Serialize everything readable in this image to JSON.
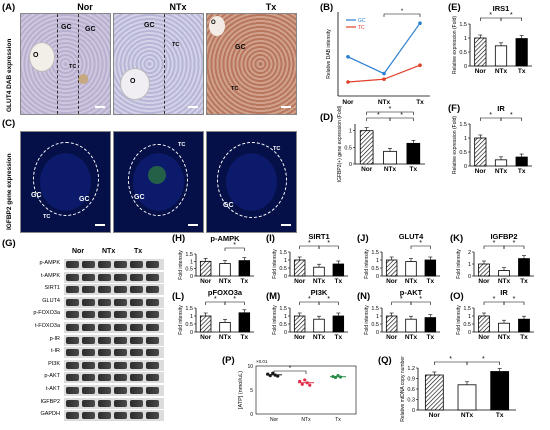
{
  "panels": {
    "A": "(A)",
    "B": "(B)",
    "C": "(C)",
    "D": "(D)",
    "E": "(E)",
    "F": "(F)",
    "G": "(G)",
    "H": "(H)",
    "I": "(I)",
    "J": "(J)",
    "K": "(K)",
    "L": "(L)",
    "M": "(M)",
    "N": "(N)",
    "O": "(O)",
    "P": "(P)",
    "Q": "(Q)"
  },
  "micro": {
    "titles": [
      "Nor",
      "NTx",
      "Tx"
    ],
    "row_a_label": "GLUT4 DAB expression",
    "row_c_label": "IGFBP2 gene expression",
    "gc": "GC",
    "tc": "TC",
    "o": "O"
  },
  "groups": [
    "Nor",
    "NTx",
    "Tx"
  ],
  "chart_data": [
    {
      "panel": "B",
      "type": "line",
      "ylabel": "Relative DAB intensity",
      "categories": [
        "Nor",
        "NTx",
        "Tx"
      ],
      "series": [
        {
          "name": "GC",
          "values": [
            14,
            8,
            26
          ],
          "color": "#2a7fd0"
        },
        {
          "name": "TC",
          "values": [
            5,
            6,
            11
          ],
          "color": "#e0402a"
        }
      ],
      "ylim": [
        0,
        30
      ],
      "significance": [
        "*"
      ]
    },
    {
      "panel": "D",
      "type": "bar",
      "ylabel": "IGFBP2(+) gene expression (Fold)",
      "categories": [
        "Nor",
        "NTx",
        "Tx"
      ],
      "values": [
        1.0,
        0.38,
        0.62
      ],
      "ylim": [
        0,
        1.2
      ],
      "yticks": [
        "0",
        "0.5",
        "1"
      ],
      "significance": [
        "*",
        "*",
        "*"
      ]
    },
    {
      "panel": "E",
      "type": "bar",
      "title": "IRS1",
      "ylabel": "Relative expression (Fold)",
      "categories": [
        "Nor",
        "NTx",
        "Tx"
      ],
      "values": [
        1.0,
        0.72,
        0.98
      ],
      "ylim": [
        0,
        1.5
      ],
      "yticks": [
        "0",
        "0.5",
        "1",
        "1.5"
      ],
      "significance": [
        "*",
        "*"
      ]
    },
    {
      "panel": "F",
      "type": "bar",
      "title": "IR",
      "ylabel": "Relative expression (Fold)",
      "categories": [
        "Nor",
        "NTx",
        "Tx"
      ],
      "values": [
        1.0,
        0.22,
        0.32
      ],
      "ylim": [
        0,
        1.5
      ],
      "yticks": [
        "0",
        "0.5",
        "1",
        "1.5"
      ],
      "significance": [
        "*",
        "*"
      ]
    },
    {
      "panel": "H",
      "type": "bar",
      "title": "p-AMPK",
      "ylabel": "Fold intensity",
      "categories": [
        "Nor",
        "NTx",
        "Tx"
      ],
      "values": [
        1.0,
        0.85,
        1.05
      ],
      "ylim": [
        0,
        1.5
      ],
      "yticks": [
        "0",
        "0.5",
        "1",
        "1.5"
      ],
      "significance": [
        "*"
      ]
    },
    {
      "panel": "I",
      "type": "bar",
      "title": "SIRT1",
      "ylabel": "Fold intensity",
      "categories": [
        "Nor",
        "NTx",
        "Tx"
      ],
      "values": [
        1.0,
        0.55,
        0.75
      ],
      "ylim": [
        0,
        1.5
      ],
      "yticks": [
        "0",
        "0.5",
        "1",
        "1.5"
      ],
      "significance": [
        "*",
        "*"
      ]
    },
    {
      "panel": "J",
      "type": "bar",
      "title": "GLUT4",
      "ylabel": "Fold intensity",
      "categories": [
        "Nor",
        "NTx",
        "Tx"
      ],
      "values": [
        1.0,
        0.9,
        1.0
      ],
      "ylim": [
        0,
        1.5
      ],
      "yticks": [
        "0",
        "0.5",
        "1",
        "1.5"
      ],
      "significance": [
        "*"
      ]
    },
    {
      "panel": "K",
      "type": "bar",
      "title": "IGFBP2",
      "ylabel": "Fold intensity",
      "categories": [
        "Nor",
        "NTx",
        "Tx"
      ],
      "values": [
        1.0,
        0.45,
        1.45
      ],
      "ylim": [
        0,
        2
      ],
      "yticks": [
        "0",
        "1",
        "2"
      ],
      "significance": [
        "*",
        "*"
      ]
    },
    {
      "panel": "L",
      "type": "bar",
      "title": "pFOXO3a",
      "ylabel": "Fold intensity",
      "categories": [
        "Nor",
        "NTx",
        "Tx"
      ],
      "values": [
        1.0,
        0.6,
        1.2
      ],
      "ylim": [
        0,
        1.5
      ],
      "yticks": [
        "0",
        "0.5",
        "1",
        "1.5"
      ],
      "significance": [
        "*",
        "*"
      ]
    },
    {
      "panel": "M",
      "type": "bar",
      "title": "PI3K",
      "ylabel": "Fold intensity",
      "categories": [
        "Nor",
        "NTx",
        "Tx"
      ],
      "values": [
        1.0,
        0.8,
        1.0
      ],
      "ylim": [
        0,
        1.5
      ],
      "yticks": [
        "0",
        "0.5",
        "1",
        "1.5"
      ],
      "significance": [
        "*",
        "*"
      ]
    },
    {
      "panel": "N",
      "type": "bar",
      "title": "p-AKT",
      "ylabel": "Fold intensity",
      "categories": [
        "Nor",
        "NTx",
        "Tx"
      ],
      "values": [
        1.0,
        0.8,
        0.9
      ],
      "ylim": [
        0,
        1.5
      ],
      "yticks": [
        "0",
        "0.5",
        "1",
        "1.5"
      ],
      "significance": [
        "*",
        "*"
      ]
    },
    {
      "panel": "O",
      "type": "bar",
      "title": "IR",
      "ylabel": "Fold intensity",
      "categories": [
        "Nor",
        "NTx",
        "Tx"
      ],
      "values": [
        1.0,
        0.55,
        0.8
      ],
      "ylim": [
        0,
        1.5
      ],
      "yticks": [
        "0",
        "0.5",
        "1",
        "1.5"
      ],
      "significance": [
        "*",
        "*"
      ]
    },
    {
      "panel": "P",
      "type": "scatter",
      "ylabel": "[ATP] (nmol/uL)",
      "yunit": "×0.01",
      "categories": [
        "Nor",
        "NTx",
        "Tx"
      ],
      "values": [
        [
          8.3,
          8.0,
          8.5,
          8.1,
          7.9
        ],
        [
          6.8,
          6.2,
          7.1,
          6.5,
          6.0
        ],
        [
          7.8,
          7.6,
          8.0,
          7.7
        ]
      ],
      "ylim": [
        0,
        10
      ],
      "yticks": [
        "0",
        "5",
        "10"
      ],
      "significance": [
        "*"
      ]
    },
    {
      "panel": "Q",
      "type": "bar",
      "ylabel": "Relative mtDNA copy number",
      "categories": [
        "Nor",
        "NTx",
        "Tx"
      ],
      "values": [
        1.0,
        0.72,
        1.1
      ],
      "ylim": [
        0,
        1.2
      ],
      "yticks": [
        "0",
        "0.3",
        "0.6",
        "0.9",
        "1.2"
      ],
      "significance": [
        "*",
        "*"
      ]
    }
  ],
  "blot": {
    "headers": [
      "Nor",
      "NTx",
      "Tx"
    ],
    "rows": [
      "p-AMPK",
      "t-AMPK",
      "SIRT1",
      "GLUT4",
      "p-FOXO3a",
      "t-FOXO3a",
      "p-IR",
      "t-IR",
      "PI3K",
      "p-AKT",
      "t-AKT",
      "IGFBP2",
      "GAPDH"
    ]
  }
}
